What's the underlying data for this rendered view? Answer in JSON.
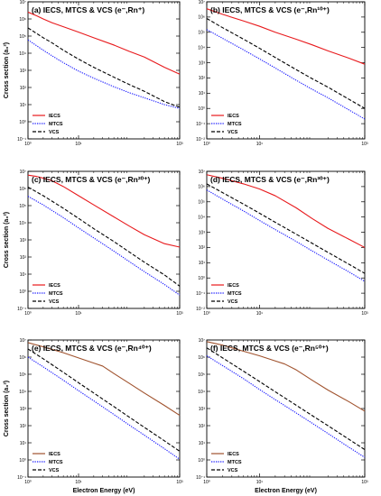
{
  "chart_data": [
    {
      "type": "line",
      "title": "(a) IECS, MTCS & VCS (e⁻,Rn⁺)",
      "ylabel": "Cross section (a₀²)",
      "xlabel": "",
      "xscale": "log",
      "yscale": "log",
      "xlim": [
        1,
        1000
      ],
      "ylim": [
        0.1,
        10000000
      ],
      "xticks": [
        {
          "v": 1,
          "label": "10⁰"
        },
        {
          "v": 10,
          "label": "10¹"
        },
        {
          "v": 1000,
          "label": "10³"
        }
      ],
      "yticks": [
        {
          "v": 0.1,
          "label": "10⁻¹"
        },
        {
          "v": 1,
          "label": "10⁰"
        },
        {
          "v": 10,
          "label": "10¹"
        },
        {
          "v": 100,
          "label": "10²"
        },
        {
          "v": 1000,
          "label": "10³"
        },
        {
          "v": 10000,
          "label": "10⁴"
        },
        {
          "v": 100000,
          "label": "10⁵"
        },
        {
          "v": 1000000,
          "label": "10⁶"
        },
        {
          "v": 10000000,
          "label": "10⁷"
        }
      ],
      "legend": "bottom-left",
      "series": [
        {
          "name": "IECS",
          "color": "#e8191c",
          "dash": "solid",
          "x": [
            1,
            1.5,
            2,
            3,
            5,
            10,
            20,
            50,
            100,
            200,
            500,
            1000
          ],
          "y": [
            2500000,
            1500000,
            1000000,
            600000,
            350000,
            170000,
            80000,
            30000,
            13000,
            6000,
            1500,
            600
          ]
        },
        {
          "name": "MTCS",
          "color": "#1c1cff",
          "dash": "dot",
          "x": [
            1,
            2,
            3,
            5,
            10,
            20,
            50,
            100,
            200,
            500,
            1000
          ],
          "y": [
            60000,
            15000,
            7000,
            2800,
            900,
            350,
            110,
            50,
            25,
            10,
            6
          ]
        },
        {
          "name": "VCS",
          "color": "#000000",
          "dash": "dash",
          "x": [
            1,
            2,
            3,
            5,
            10,
            20,
            50,
            100,
            200,
            500,
            1000
          ],
          "y": [
            300000,
            80000,
            40000,
            15000,
            4500,
            1500,
            400,
            150,
            60,
            15,
            7
          ]
        }
      ]
    },
    {
      "type": "line",
      "title": "(b) IECS, MTCS & VCS (e⁻,Rn¹⁰⁺)",
      "ylabel": "",
      "xlabel": "",
      "xscale": "log",
      "yscale": "log",
      "xlim": [
        1,
        1000
      ],
      "ylim": [
        0.01,
        10000000
      ],
      "xticks": [
        {
          "v": 1,
          "label": "10⁰"
        },
        {
          "v": 10,
          "label": "10¹"
        },
        {
          "v": 1000,
          "label": "10³"
        }
      ],
      "yticks": [
        {
          "v": 0.01,
          "label": "10⁻²"
        },
        {
          "v": 0.1,
          "label": "10⁻¹"
        },
        {
          "v": 1,
          "label": "10⁰"
        },
        {
          "v": 10,
          "label": "10¹"
        },
        {
          "v": 100,
          "label": "10²"
        },
        {
          "v": 1000,
          "label": "10³"
        },
        {
          "v": 10000,
          "label": "10⁴"
        },
        {
          "v": 100000,
          "label": "10⁵"
        },
        {
          "v": 1000000,
          "label": "10⁶"
        },
        {
          "v": 10000000,
          "label": "10⁷"
        }
      ],
      "legend": "bottom-left",
      "series": [
        {
          "name": "IECS",
          "color": "#e8191c",
          "dash": "solid",
          "x": [
            1,
            2,
            5,
            10,
            20,
            50,
            100,
            200,
            500,
            1000
          ],
          "y": [
            3500000,
            1500000,
            550000,
            250000,
            100000,
            35000,
            15000,
            6000,
            2000,
            800
          ]
        },
        {
          "name": "MTCS",
          "color": "#1c1cff",
          "dash": "dot",
          "x": [
            1,
            2,
            5,
            10,
            20,
            50,
            100,
            200,
            500,
            1000
          ],
          "y": [
            150000,
            40000,
            7000,
            1800,
            450,
            70,
            18,
            5,
            0.8,
            0.2
          ]
        },
        {
          "name": "VCS",
          "color": "#000000",
          "dash": "dash",
          "x": [
            1,
            2,
            5,
            10,
            20,
            50,
            100,
            200,
            500,
            1000
          ],
          "y": [
            800000,
            200000,
            35000,
            9000,
            2200,
            350,
            90,
            25,
            4,
            1
          ]
        }
      ]
    },
    {
      "type": "line",
      "title": "(c) IECS, MTCS & VCS (e⁻,Rn²⁰⁺)",
      "ylabel": "Cross section (a₀²)",
      "xlabel": "",
      "xscale": "log",
      "yscale": "log",
      "xlim": [
        1,
        1000
      ],
      "ylim": [
        0.1,
        10000000
      ],
      "xticks": [
        {
          "v": 1,
          "label": "10⁰"
        },
        {
          "v": 10,
          "label": "10¹"
        },
        {
          "v": 1000,
          "label": "10³"
        }
      ],
      "yticks": [
        {
          "v": 0.1,
          "label": "10⁻¹"
        },
        {
          "v": 1,
          "label": "10⁰"
        },
        {
          "v": 10,
          "label": "10¹"
        },
        {
          "v": 100,
          "label": "10²"
        },
        {
          "v": 1000,
          "label": "10³"
        },
        {
          "v": 10000,
          "label": "10⁴"
        },
        {
          "v": 100000,
          "label": "10⁵"
        },
        {
          "v": 1000000,
          "label": "10⁶"
        },
        {
          "v": 10000000,
          "label": "10⁷"
        }
      ],
      "legend": "bottom-left",
      "series": [
        {
          "name": "IECS",
          "color": "#e8191c",
          "dash": "solid",
          "x": [
            1,
            1.5,
            2,
            3,
            5,
            10,
            20,
            50,
            100,
            200,
            500,
            1000
          ],
          "y": [
            6000000,
            5000000,
            4000000,
            2800000,
            1300000,
            380000,
            110000,
            22000,
            6500,
            2000,
            600,
            380
          ]
        },
        {
          "name": "MTCS",
          "color": "#1c1cff",
          "dash": "dot",
          "x": [
            1,
            2,
            5,
            10,
            20,
            50,
            100,
            200,
            500,
            1000
          ],
          "y": [
            350000,
            110000,
            20000,
            5000,
            1300,
            220,
            55,
            14,
            2.5,
            0.6
          ]
        },
        {
          "name": "VCS",
          "color": "#000000",
          "dash": "dash",
          "x": [
            1,
            2,
            5,
            10,
            20,
            50,
            100,
            200,
            500,
            1000
          ],
          "y": [
            1200000,
            380000,
            70000,
            18000,
            4500,
            800,
            200,
            50,
            9,
            2
          ]
        }
      ]
    },
    {
      "type": "line",
      "title": "(d) IECS, MTCS & VCS (e⁻,Rn³⁰⁺)",
      "ylabel": "",
      "xlabel": "",
      "xscale": "log",
      "yscale": "log",
      "xlim": [
        1,
        1000
      ],
      "ylim": [
        0.01,
        10000000
      ],
      "xticks": [
        {
          "v": 1,
          "label": "10⁰"
        },
        {
          "v": 10,
          "label": "10¹"
        },
        {
          "v": 1000,
          "label": "10³"
        }
      ],
      "yticks": [
        {
          "v": 0.01,
          "label": "10⁻²"
        },
        {
          "v": 0.1,
          "label": "10⁻¹"
        },
        {
          "v": 1,
          "label": "10⁰"
        },
        {
          "v": 10,
          "label": "10¹"
        },
        {
          "v": 100,
          "label": "10²"
        },
        {
          "v": 1000,
          "label": "10³"
        },
        {
          "v": 10000,
          "label": "10⁴"
        },
        {
          "v": 100000,
          "label": "10⁵"
        },
        {
          "v": 1000000,
          "label": "10⁶"
        },
        {
          "v": 10000000,
          "label": "10⁷"
        }
      ],
      "legend": "bottom-left",
      "series": [
        {
          "name": "IECS",
          "color": "#e8191c",
          "dash": "solid",
          "x": [
            1,
            2,
            5,
            10,
            20,
            50,
            100,
            200,
            500,
            1000
          ],
          "y": [
            6000000,
            3500000,
            1500000,
            700000,
            250000,
            40000,
            8000,
            1800,
            350,
            100
          ]
        },
        {
          "name": "MTCS",
          "color": "#1c1cff",
          "dash": "dot",
          "x": [
            1,
            2,
            5,
            10,
            20,
            50,
            100,
            200,
            500,
            1000
          ],
          "y": [
            600000,
            150000,
            25000,
            6000,
            1500,
            250,
            60,
            15,
            2.5,
            0.6
          ]
        },
        {
          "name": "VCS",
          "color": "#000000",
          "dash": "dash",
          "x": [
            1,
            2,
            5,
            10,
            20,
            50,
            100,
            200,
            500,
            1000
          ],
          "y": [
            1500000,
            400000,
            70000,
            18000,
            4500,
            750,
            190,
            48,
            8,
            2
          ]
        }
      ]
    },
    {
      "type": "line",
      "title": "(e) IECS, MTCS & VCS (e⁻,Rn⁴⁰⁺)",
      "ylabel": "Cross section (a₀²)",
      "xlabel": "Electron Energy (eV)",
      "xscale": "log",
      "yscale": "log",
      "xlim": [
        1,
        1000
      ],
      "ylim": [
        0.1,
        10000000
      ],
      "xticks": [
        {
          "v": 1,
          "label": "10⁰"
        },
        {
          "v": 10,
          "label": "10¹"
        },
        {
          "v": 1000,
          "label": "10³"
        }
      ],
      "yticks": [
        {
          "v": 0.1,
          "label": "10⁻¹"
        },
        {
          "v": 1,
          "label": "10⁰"
        },
        {
          "v": 10,
          "label": "10¹"
        },
        {
          "v": 100,
          "label": "10²"
        },
        {
          "v": 1000,
          "label": "10³"
        },
        {
          "v": 10000,
          "label": "10⁴"
        },
        {
          "v": 100000,
          "label": "10⁵"
        },
        {
          "v": 1000000,
          "label": "10⁶"
        },
        {
          "v": 10000000,
          "label": "10⁷"
        }
      ],
      "legend": "bottom-left",
      "series": [
        {
          "name": "IECS",
          "color": "#a0522d",
          "dash": "solid",
          "x": [
            1,
            2,
            5,
            10,
            20,
            30,
            50,
            100,
            200,
            500,
            1000
          ],
          "y": [
            7000000,
            4000000,
            1800000,
            900000,
            450000,
            300000,
            110000,
            30000,
            8000,
            1500,
            400
          ]
        },
        {
          "name": "MTCS",
          "color": "#1c1cff",
          "dash": "dot",
          "x": [
            1,
            2,
            5,
            10,
            20,
            50,
            100,
            200,
            500,
            1000
          ],
          "y": [
            1000000,
            270000,
            45000,
            11000,
            2800,
            450,
            110,
            28,
            4.5,
            1.1
          ]
        },
        {
          "name": "VCS",
          "color": "#000000",
          "dash": "dash",
          "x": [
            1,
            2,
            5,
            10,
            20,
            50,
            100,
            200,
            500,
            1000
          ],
          "y": [
            3000000,
            800000,
            130000,
            32000,
            8000,
            1300,
            320,
            80,
            13,
            3.2
          ]
        }
      ]
    },
    {
      "type": "line",
      "title": "(f) IECS, MTCS & VCS (e⁻,Rn⁵⁰⁺)",
      "ylabel": "",
      "xlabel": "Electron Energy (eV)",
      "xscale": "log",
      "yscale": "log",
      "xlim": [
        1,
        1000
      ],
      "ylim": [
        0.1,
        10000000
      ],
      "xticks": [
        {
          "v": 1,
          "label": "10⁰"
        },
        {
          "v": 10,
          "label": "10¹"
        },
        {
          "v": 1000,
          "label": "10³"
        }
      ],
      "yticks": [
        {
          "v": 0.1,
          "label": "10⁻¹"
        },
        {
          "v": 1,
          "label": "10⁰"
        },
        {
          "v": 10,
          "label": "10¹"
        },
        {
          "v": 100,
          "label": "10²"
        },
        {
          "v": 1000,
          "label": "10³"
        },
        {
          "v": 10000,
          "label": "10⁴"
        },
        {
          "v": 100000,
          "label": "10⁵"
        },
        {
          "v": 1000000,
          "label": "10⁶"
        },
        {
          "v": 10000000,
          "label": "10⁷"
        }
      ],
      "legend": "bottom-left",
      "series": [
        {
          "name": "IECS",
          "color": "#a0522d",
          "dash": "solid",
          "x": [
            1,
            2,
            5,
            10,
            20,
            30,
            50,
            100,
            200,
            500,
            1000
          ],
          "y": [
            8000000,
            5000000,
            2200000,
            1200000,
            600000,
            400000,
            180000,
            45000,
            12000,
            2500,
            700
          ]
        },
        {
          "name": "MTCS",
          "color": "#1c1cff",
          "dash": "dot",
          "x": [
            1,
            2,
            5,
            10,
            20,
            50,
            100,
            200,
            500,
            1000
          ],
          "y": [
            1200000,
            320000,
            55000,
            13000,
            3300,
            550,
            140,
            35,
            5.5,
            1.4
          ]
        },
        {
          "name": "VCS",
          "color": "#000000",
          "dash": "dash",
          "x": [
            1,
            2,
            5,
            10,
            20,
            50,
            100,
            200,
            500,
            1000
          ],
          "y": [
            3500000,
            900000,
            150000,
            38000,
            9500,
            1550,
            390,
            100,
            16,
            4
          ]
        }
      ]
    }
  ]
}
